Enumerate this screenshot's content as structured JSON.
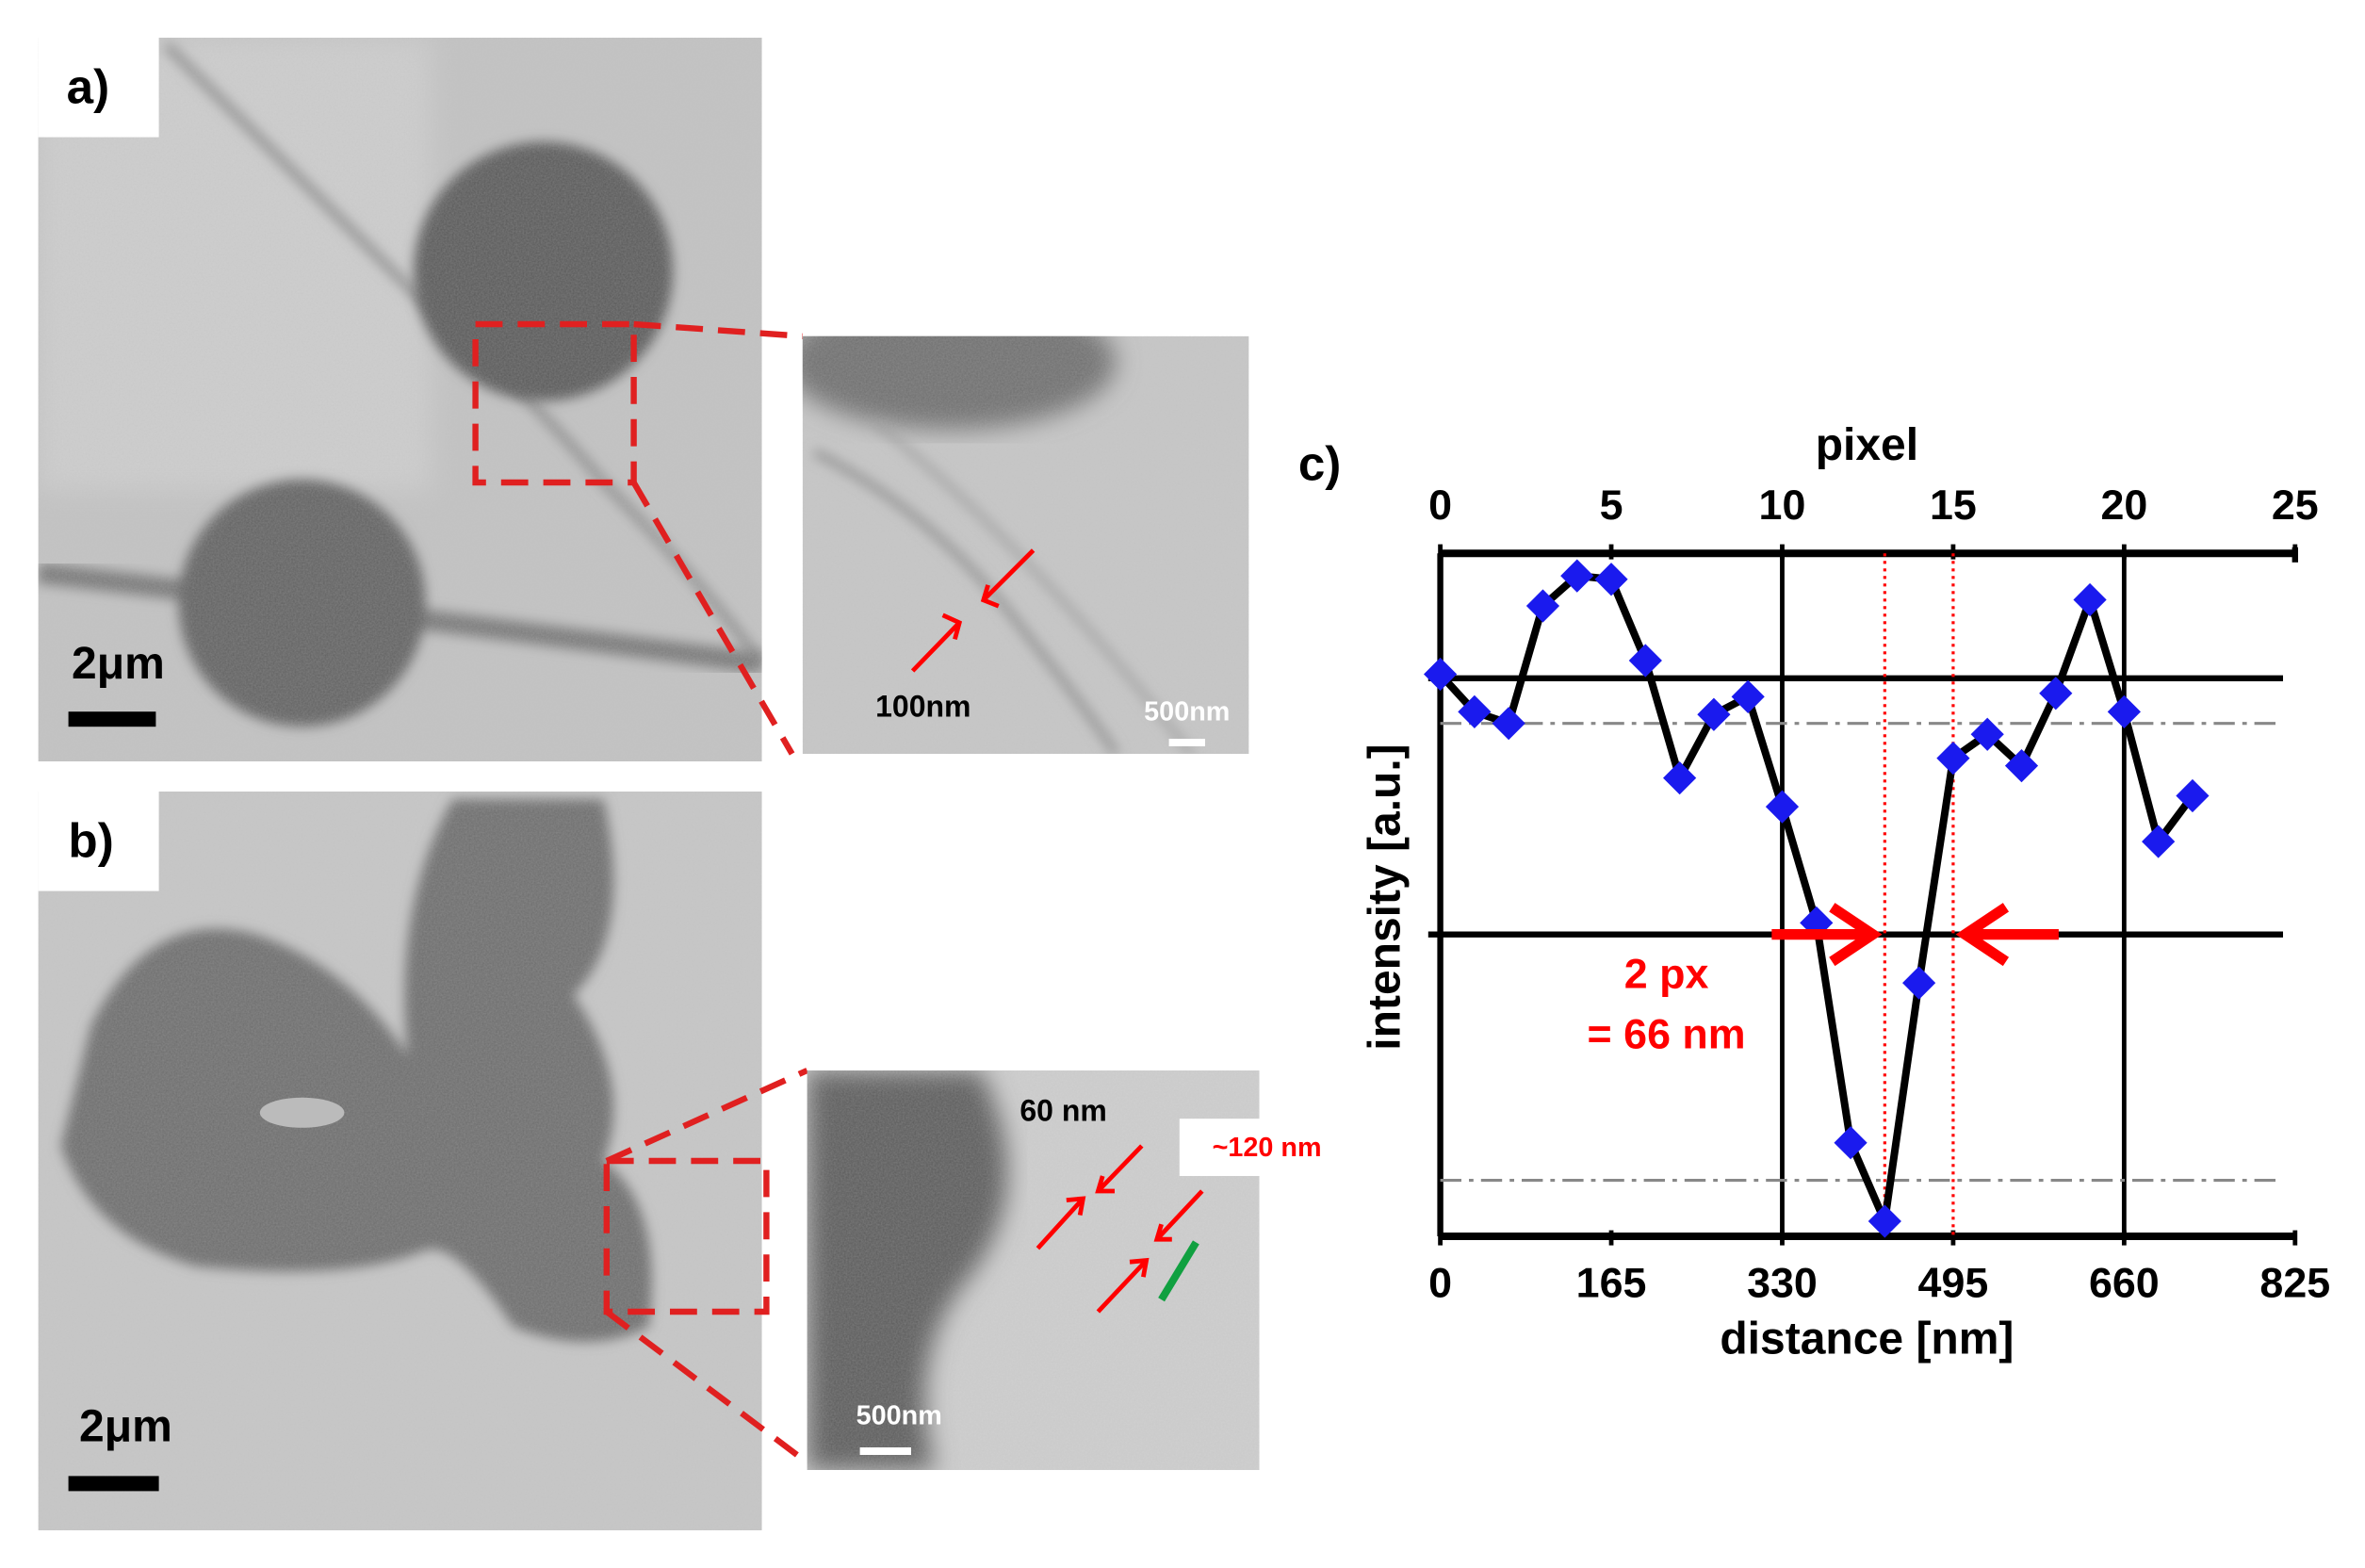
{
  "panel_a": {
    "label": "a)",
    "scale_bar": "2μm",
    "inset": {
      "scale_bar": "500nm",
      "annotation": "100nm"
    }
  },
  "panel_b": {
    "label": "b)",
    "scale_bar": "2μm",
    "inset": {
      "scale_bar": "500nm",
      "annotations": [
        "60 nm",
        "~120 nm"
      ]
    }
  },
  "chart_data": {
    "type": "line",
    "panel_label": "c)",
    "x_label": "pixel",
    "x2_label": "distance [nm]",
    "y_label": "intensity [a.u.]",
    "x": [
      0,
      1,
      2,
      3,
      4,
      5,
      6,
      7,
      8,
      9,
      10,
      11,
      12,
      13,
      14,
      15,
      16,
      17,
      18,
      19,
      20,
      21,
      22
    ],
    "series": [
      {
        "color": "#1a1aee",
        "values": [
          82.3,
          76.8,
          75.1,
          92.3,
          96.7,
          96.2,
          84.3,
          67.1,
          76.4,
          79.0,
          62.9,
          45.9,
          13.7,
          2.2,
          37.1,
          70.0,
          73.5,
          68.9,
          79.5,
          93.2,
          76.8,
          57.8,
          64.5
        ]
      }
    ],
    "line_color": "#000000",
    "xlim": [
      0,
      25
    ],
    "xticks": [
      0,
      5,
      10,
      15,
      20,
      25
    ],
    "x2lim": [
      0,
      825
    ],
    "x2ticks": [
      0,
      165,
      330,
      495,
      660,
      825
    ],
    "ylim": [
      0,
      100
    ],
    "hlines": [
      81.7,
      44.2
    ],
    "dashdot_hlines": [
      75.1,
      8.2
    ],
    "vlines": [
      10,
      20
    ],
    "marker_lines": [
      13,
      15
    ],
    "marker_color": "#ff0000",
    "annotations": [
      "2 px",
      "= 66 nm"
    ]
  }
}
